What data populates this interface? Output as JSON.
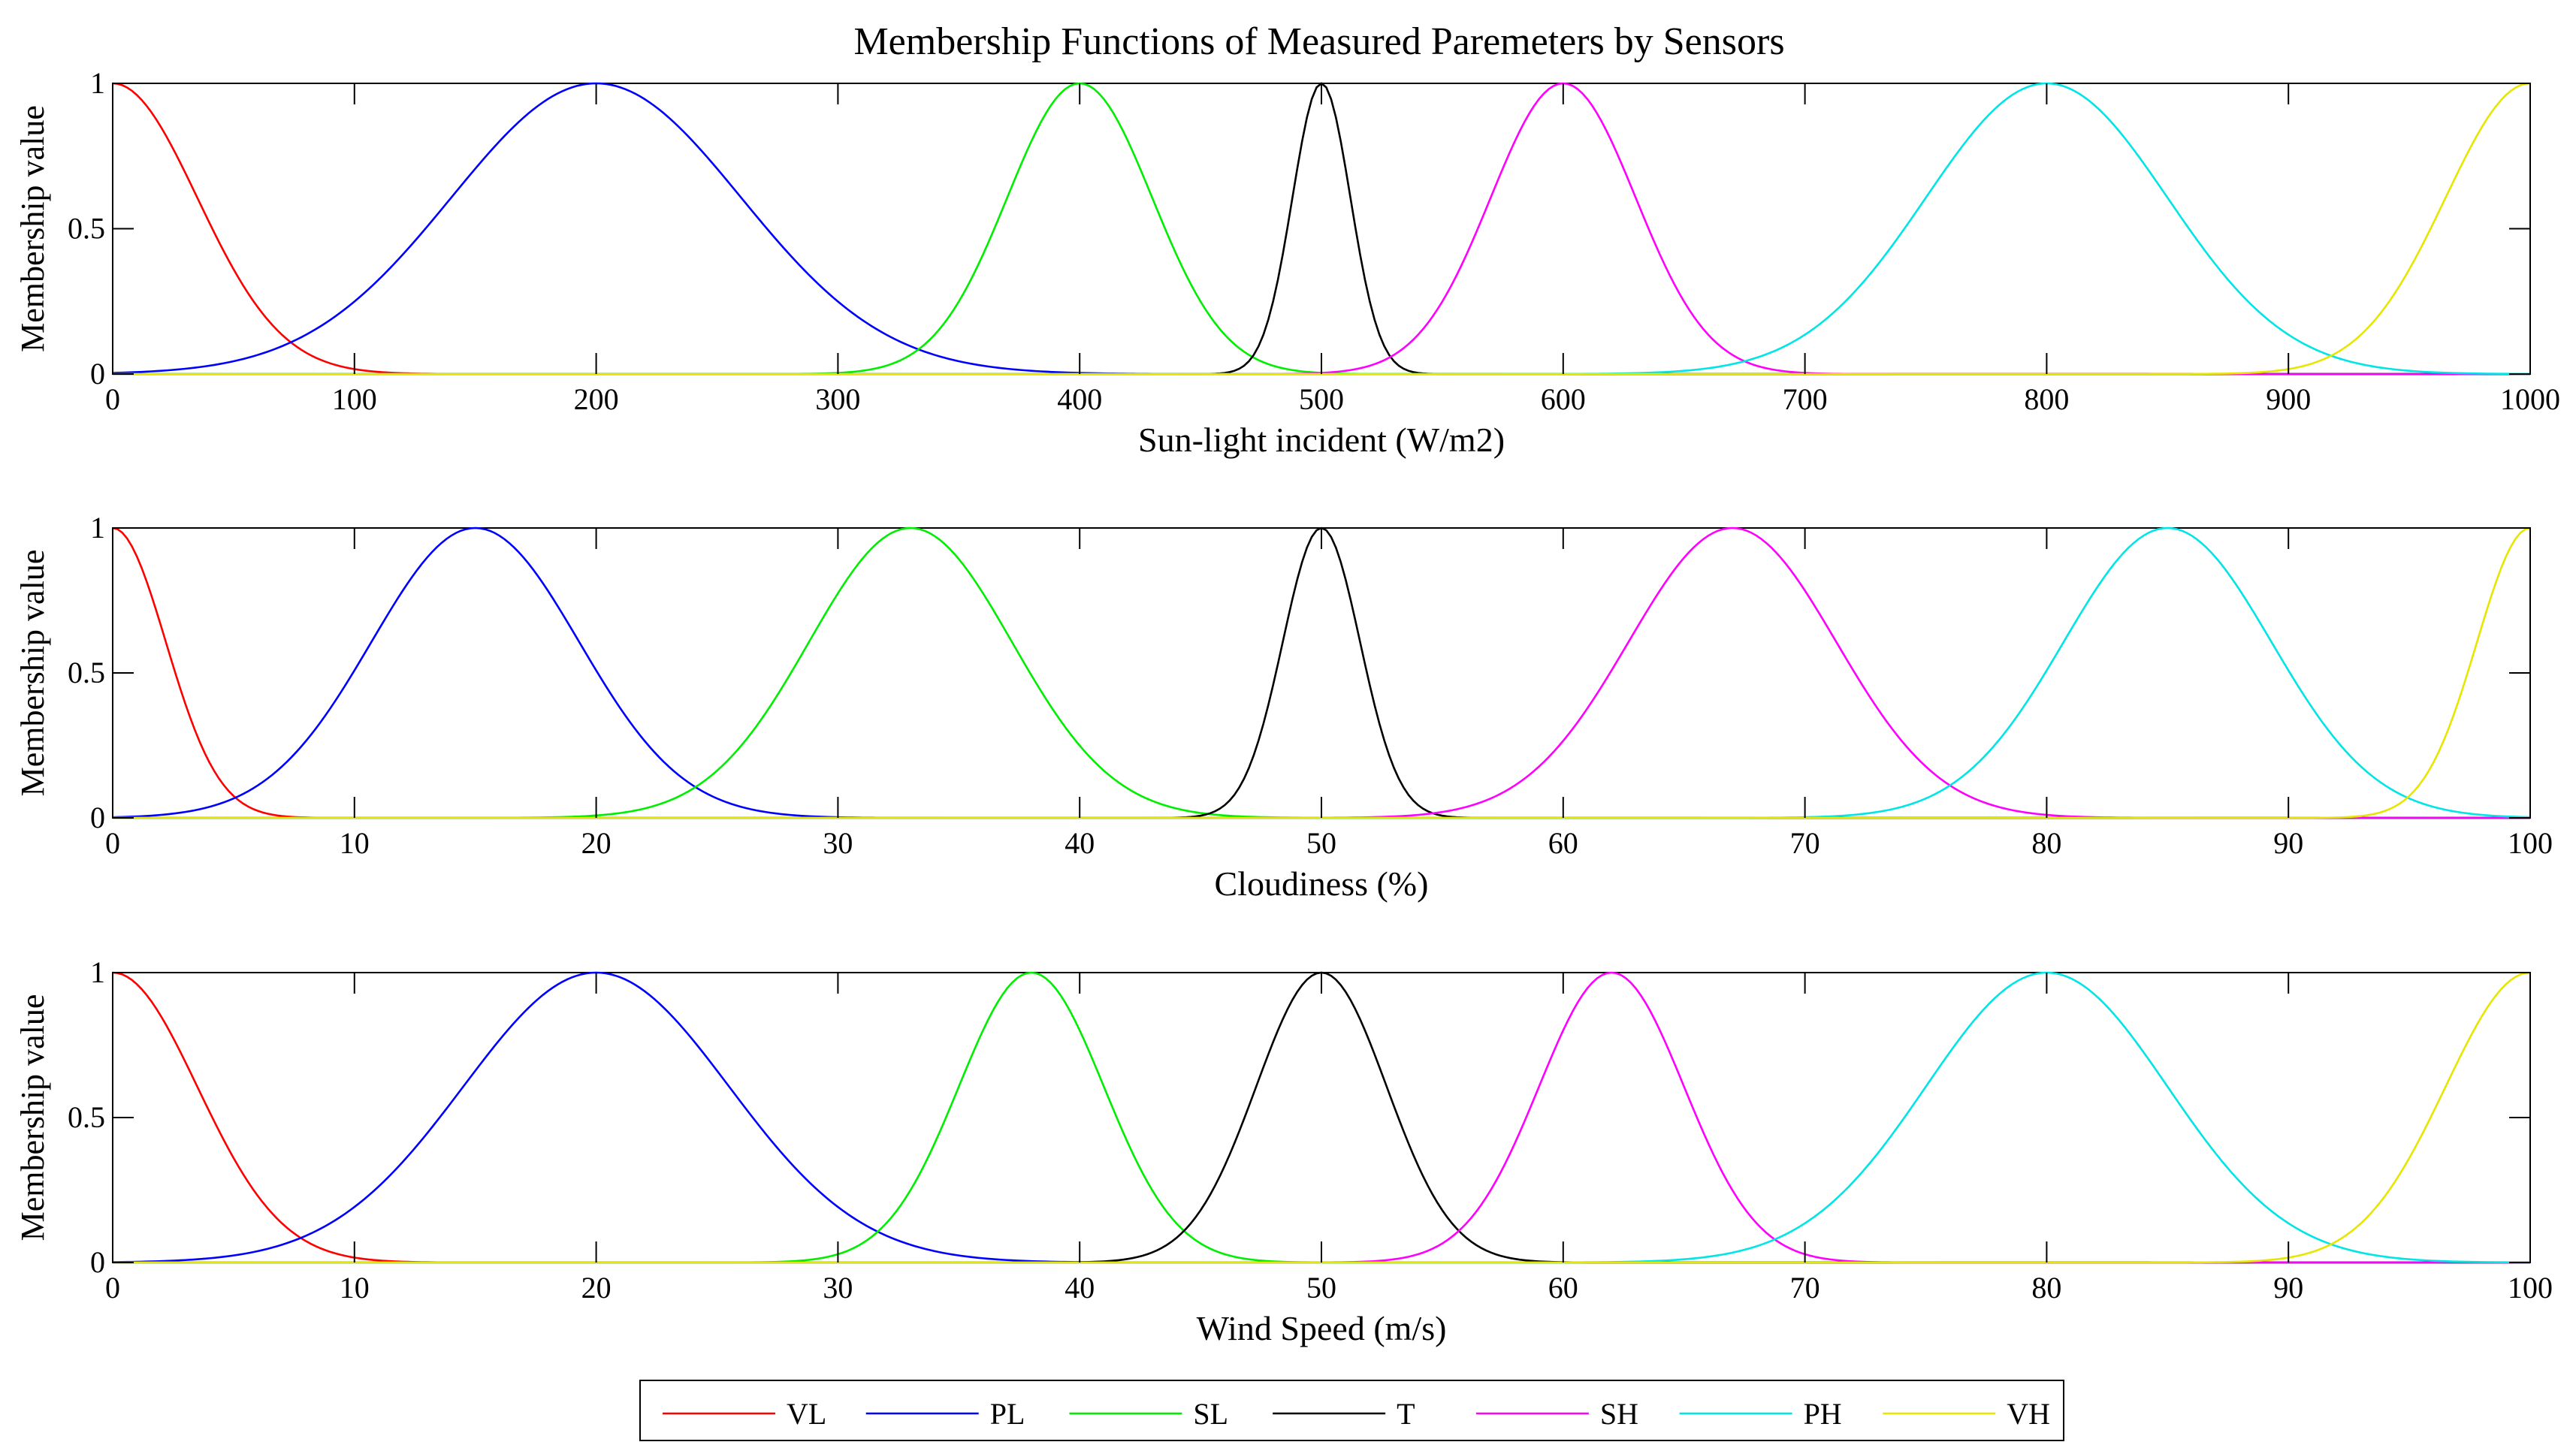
{
  "title": "Membership Functions of Measured Paremeters by Sensors",
  "chart_data": [
    {
      "type": "line",
      "xlabel": "Sun-light incident (W/m2)",
      "ylabel": "Membership value",
      "xlim": [
        0,
        1000
      ],
      "ylim": [
        0,
        1
      ],
      "xticks": [
        0,
        100,
        200,
        300,
        400,
        500,
        600,
        700,
        800,
        900,
        1000
      ],
      "yticks": [
        0,
        0.5,
        1
      ],
      "ytick_labels": [
        "0",
        "0.5",
        "1"
      ],
      "series": [
        {
          "name": "VL",
          "shape": "gaussian",
          "center": 0,
          "sigma": 35,
          "color": "#ff0000"
        },
        {
          "name": "PL",
          "shape": "gaussian",
          "center": 200,
          "sigma": 60,
          "color": "#0000ff"
        },
        {
          "name": "SL",
          "shape": "gaussian",
          "center": 400,
          "sigma": 30,
          "color": "#00ee00"
        },
        {
          "name": "T",
          "shape": "gaussian",
          "center": 500,
          "sigma": 12,
          "color": "#000000"
        },
        {
          "name": "SH",
          "shape": "gaussian",
          "center": 600,
          "sigma": 30,
          "color": "#ff00ff"
        },
        {
          "name": "PH",
          "shape": "gaussian",
          "center": 800,
          "sigma": 50,
          "color": "#00e5e5"
        },
        {
          "name": "VH",
          "shape": "gaussian",
          "center": 1000,
          "sigma": 35,
          "color": "#e6e600"
        }
      ]
    },
    {
      "type": "line",
      "xlabel": "Cloudiness (%)",
      "ylabel": "Membership value",
      "xlim": [
        0,
        100
      ],
      "ylim": [
        0,
        1
      ],
      "xticks": [
        0,
        10,
        20,
        30,
        40,
        50,
        60,
        70,
        80,
        90,
        100
      ],
      "yticks": [
        0,
        0.5,
        1
      ],
      "ytick_labels": [
        "0",
        "0.5",
        "1"
      ],
      "series": [
        {
          "name": "VL",
          "shape": "gaussian",
          "center": 0,
          "sigma": 2.2,
          "color": "#ff0000"
        },
        {
          "name": "PL",
          "shape": "gaussian",
          "center": 15,
          "sigma": 4.3,
          "color": "#0000ff"
        },
        {
          "name": "SL",
          "shape": "gaussian",
          "center": 33,
          "sigma": 4.2,
          "color": "#00ee00"
        },
        {
          "name": "T",
          "shape": "gaussian",
          "center": 50,
          "sigma": 1.6,
          "color": "#000000"
        },
        {
          "name": "SH",
          "shape": "gaussian",
          "center": 67,
          "sigma": 4.3,
          "color": "#ff00ff"
        },
        {
          "name": "PH",
          "shape": "gaussian",
          "center": 85,
          "sigma": 4.3,
          "color": "#00e5e5"
        },
        {
          "name": "VH",
          "shape": "gaussian",
          "center": 100,
          "sigma": 2.2,
          "color": "#e6e600"
        }
      ]
    },
    {
      "type": "line",
      "xlabel": "Wind Speed (m/s)",
      "ylabel": "Membership value",
      "xlim": [
        0,
        100
      ],
      "ylim": [
        0,
        1
      ],
      "xticks": [
        0,
        10,
        20,
        30,
        40,
        50,
        60,
        70,
        80,
        90,
        100
      ],
      "yticks": [
        0,
        0.5,
        1
      ],
      "ytick_labels": [
        "0",
        "0.5",
        "1"
      ],
      "series": [
        {
          "name": "VL",
          "shape": "gaussian",
          "center": 0,
          "sigma": 3.5,
          "color": "#ff0000"
        },
        {
          "name": "PL",
          "shape": "gaussian",
          "center": 20,
          "sigma": 5.5,
          "color": "#0000ff"
        },
        {
          "name": "SL",
          "shape": "gaussian",
          "center": 38,
          "sigma": 3.0,
          "color": "#00ee00"
        },
        {
          "name": "T",
          "shape": "gaussian",
          "center": 50,
          "sigma": 2.7,
          "color": "#000000"
        },
        {
          "name": "SH",
          "shape": "gaussian",
          "center": 62,
          "sigma": 3.0,
          "color": "#ff00ff"
        },
        {
          "name": "PH",
          "shape": "gaussian",
          "center": 80,
          "sigma": 5.0,
          "color": "#00e5e5"
        },
        {
          "name": "VH",
          "shape": "gaussian",
          "center": 100,
          "sigma": 3.5,
          "color": "#e6e600"
        }
      ]
    }
  ],
  "legend": {
    "placement": "bottom-center",
    "entries": [
      {
        "label": "VL",
        "color": "#ff0000"
      },
      {
        "label": "PL",
        "color": "#0000ff"
      },
      {
        "label": "SL",
        "color": "#00ee00"
      },
      {
        "label": "T",
        "color": "#000000"
      },
      {
        "label": "SH",
        "color": "#ff00ff"
      },
      {
        "label": "PH",
        "color": "#00e5e5"
      },
      {
        "label": "VH",
        "color": "#e6e600"
      }
    ]
  }
}
